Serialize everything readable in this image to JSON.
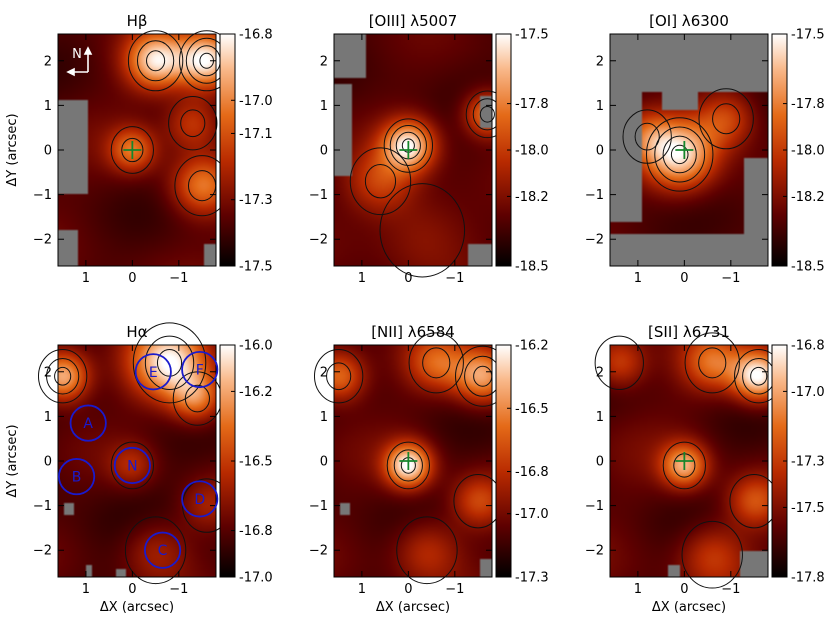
{
  "chart_data": [
    {
      "type": "heatmap",
      "title": "Hβ",
      "xlabel": "",
      "ylabel": "ΔY (arcsec)",
      "xlim": [
        1.6,
        -1.8
      ],
      "ylim": [
        -2.6,
        2.6
      ],
      "xticks": [
        1,
        0,
        -1
      ],
      "yticks": [
        -2,
        -1,
        0,
        1,
        2
      ],
      "xtick_labels": [
        "1",
        "0",
        "−1"
      ],
      "ytick_labels": [
        "−2",
        "−1",
        "0",
        "1",
        "2"
      ],
      "colorbar": {
        "range": [
          -17.5,
          -16.8
        ],
        "ticks": [
          -16.8,
          -17.0,
          -17.1,
          -17.3,
          -17.5
        ],
        "tick_labels": [
          "-16.8",
          "-17.0",
          "-17.1",
          "-17.3",
          "-17.5"
        ]
      },
      "peaks": [
        {
          "x": 0.0,
          "y": 0.0,
          "amp": 0.55,
          "s": 0.35
        },
        {
          "x": -0.5,
          "y": 2.0,
          "amp": 0.85,
          "s": 0.45
        },
        {
          "x": -1.6,
          "y": 2.0,
          "amp": 0.95,
          "s": 0.45
        },
        {
          "x": -1.5,
          "y": -0.8,
          "amp": 0.55,
          "s": 0.45
        },
        {
          "x": -1.3,
          "y": 0.6,
          "amp": 0.4,
          "s": 0.4
        }
      ],
      "base": 0.45,
      "masked": [
        {
          "x0": 1.6,
          "x1": 0.95,
          "y0": -1.0,
          "y1": 1.1
        },
        {
          "x0": 1.6,
          "x1": 1.15,
          "y0": -2.6,
          "y1": -1.8
        },
        {
          "x0": -1.55,
          "x1": -1.8,
          "y0": -2.6,
          "y1": -2.1
        }
      ],
      "marker": {
        "x": 0,
        "y": 0
      },
      "compass": {
        "north": "N"
      },
      "circles": []
    },
    {
      "type": "heatmap",
      "title": "[OIII] λ5007",
      "xlabel": "",
      "ylabel": "",
      "xlim": [
        1.6,
        -1.8
      ],
      "ylim": [
        -2.6,
        2.6
      ],
      "xticks": [
        1,
        0,
        -1
      ],
      "yticks": [
        -2,
        -1,
        0,
        1,
        2
      ],
      "xtick_labels": [
        "1",
        "0",
        "−1"
      ],
      "ytick_labels": [
        "−2",
        "−1",
        "0",
        "1",
        "2"
      ],
      "colorbar": {
        "range": [
          -18.5,
          -17.5
        ],
        "ticks": [
          -17.5,
          -17.8,
          -18.0,
          -18.2,
          -18.5
        ],
        "tick_labels": [
          "-17.5",
          "-17.8",
          "-18.0",
          "-18.2",
          "-18.5"
        ]
      },
      "peaks": [
        {
          "x": 0.0,
          "y": 0.1,
          "amp": 1.05,
          "s": 0.4
        },
        {
          "x": 0.6,
          "y": -0.7,
          "amp": 0.45,
          "s": 0.5
        },
        {
          "x": -1.7,
          "y": 0.8,
          "amp": 0.75,
          "s": 0.35
        },
        {
          "x": -0.3,
          "y": -1.8,
          "amp": 0.25,
          "s": 0.7
        }
      ],
      "base": 0.28,
      "masked": [
        {
          "x0": 1.6,
          "x1": 0.9,
          "y0": 1.6,
          "y1": 2.6
        },
        {
          "x0": 1.6,
          "x1": 1.2,
          "y0": -0.6,
          "y1": 1.5
        },
        {
          "x0": -1.55,
          "x1": -1.8,
          "y0": 0.5,
          "y1": 1.2
        },
        {
          "x0": -1.3,
          "x1": -1.8,
          "y0": -2.6,
          "y1": -2.1
        }
      ],
      "marker": {
        "x": 0,
        "y": 0
      },
      "compass": null,
      "circles": []
    },
    {
      "type": "heatmap",
      "title": "[OI] λ6300",
      "xlabel": "",
      "ylabel": "",
      "xlim": [
        1.6,
        -1.8
      ],
      "ylim": [
        -2.6,
        2.6
      ],
      "xticks": [
        1,
        0,
        -1
      ],
      "yticks": [
        -2,
        -1,
        0,
        1,
        2
      ],
      "xtick_labels": [
        "1",
        "0",
        "−1"
      ],
      "ytick_labels": [
        "−2",
        "−1",
        "0",
        "1",
        "2"
      ],
      "colorbar": {
        "range": [
          -18.5,
          -17.5
        ],
        "ticks": [
          -17.5,
          -17.8,
          -18.0,
          -18.2,
          -18.5
        ],
        "tick_labels": [
          "-17.5",
          "-17.8",
          "-18.0",
          "-18.2",
          "-18.5"
        ]
      },
      "peaks": [
        {
          "x": 0.1,
          "y": -0.1,
          "amp": 1.1,
          "s": 0.55
        },
        {
          "x": -0.9,
          "y": 0.7,
          "amp": 0.55,
          "s": 0.45
        },
        {
          "x": 0.8,
          "y": 0.3,
          "amp": 0.4,
          "s": 0.4
        }
      ],
      "base": 0.38,
      "masked": [
        {
          "x0": 1.6,
          "x1": -1.8,
          "y0": 1.3,
          "y1": 2.6
        },
        {
          "x0": 1.6,
          "x1": 0.9,
          "y0": -1.6,
          "y1": 1.3
        },
        {
          "x0": 1.6,
          "x1": -1.8,
          "y0": -2.6,
          "y1": -1.9
        },
        {
          "x0": -1.3,
          "x1": -1.8,
          "y0": -1.9,
          "y1": -0.2
        },
        {
          "x0": 0.5,
          "x1": -0.3,
          "y0": 0.9,
          "y1": 1.3
        }
      ],
      "marker": {
        "x": 0,
        "y": 0
      },
      "compass": null,
      "circles": []
    },
    {
      "type": "heatmap",
      "title": "Hα",
      "xlabel": "ΔX (arcsec)",
      "ylabel": "ΔY (arcsec)",
      "xlim": [
        1.6,
        -1.8
      ],
      "ylim": [
        -2.6,
        2.6
      ],
      "xticks": [
        1,
        0,
        -1
      ],
      "yticks": [
        -2,
        -1,
        0,
        1,
        2
      ],
      "xtick_labels": [
        "1",
        "0",
        "−1"
      ],
      "ytick_labels": [
        "−2",
        "−1",
        "0",
        "1",
        "2"
      ],
      "colorbar": {
        "range": [
          -17.0,
          -16.0
        ],
        "ticks": [
          -16.0,
          -16.2,
          -16.5,
          -16.8,
          -17.0
        ],
        "tick_labels": [
          "-16.0",
          "-16.2",
          "-16.5",
          "-16.8",
          "-17.0"
        ]
      },
      "peaks": [
        {
          "x": 1.5,
          "y": 1.9,
          "amp": 0.75,
          "s": 0.4
        },
        {
          "x": -0.8,
          "y": 2.2,
          "amp": 0.8,
          "s": 0.6
        },
        {
          "x": -1.4,
          "y": 1.4,
          "amp": 0.5,
          "s": 0.4
        },
        {
          "x": 0.0,
          "y": -0.1,
          "amp": 0.25,
          "s": 0.35
        },
        {
          "x": -0.5,
          "y": -2.0,
          "amp": 0.25,
          "s": 0.5
        },
        {
          "x": -1.6,
          "y": -1.0,
          "amp": 0.2,
          "s": 0.4
        }
      ],
      "base": 0.4,
      "masked": [
        {
          "x0": 1.45,
          "x1": 1.25,
          "y0": -1.2,
          "y1": -0.95
        },
        {
          "x0": 1.0,
          "x1": 0.85,
          "y0": -2.6,
          "y1": -2.35
        },
        {
          "x0": 0.35,
          "x1": 0.15,
          "y0": -2.6,
          "y1": -2.4
        }
      ],
      "marker": null,
      "compass": null,
      "circles": [
        {
          "label": "A",
          "x": 0.95,
          "y": 0.85,
          "r": 0.38
        },
        {
          "label": "B",
          "x": 1.2,
          "y": -0.35,
          "r": 0.38
        },
        {
          "label": "N",
          "x": 0.0,
          "y": -0.1,
          "r": 0.38
        },
        {
          "label": "E",
          "x": -0.45,
          "y": 2.0,
          "r": 0.38
        },
        {
          "label": "F",
          "x": -1.45,
          "y": 2.05,
          "r": 0.38
        },
        {
          "label": "D",
          "x": -1.45,
          "y": -0.85,
          "r": 0.38
        },
        {
          "label": "C",
          "x": -0.65,
          "y": -2.0,
          "r": 0.38
        }
      ]
    },
    {
      "type": "heatmap",
      "title": "[NII] λ6584",
      "xlabel": "ΔX (arcsec)",
      "ylabel": "",
      "xlim": [
        1.6,
        -1.8
      ],
      "ylim": [
        -2.6,
        2.6
      ],
      "xticks": [
        1,
        0,
        -1
      ],
      "yticks": [
        -2,
        -1,
        0,
        1,
        2
      ],
      "xtick_labels": [
        "1",
        "0",
        "−1"
      ],
      "ytick_labels": [
        "−2",
        "−1",
        "0",
        "1",
        "2"
      ],
      "colorbar": {
        "range": [
          -17.3,
          -16.2
        ],
        "ticks": [
          -16.2,
          -16.5,
          -16.8,
          -17.0,
          -17.3
        ],
        "tick_labels": [
          "-16.2",
          "-16.5",
          "-16.8",
          "-17.0",
          "-17.3"
        ]
      },
      "peaks": [
        {
          "x": 0.0,
          "y": -0.1,
          "amp": 0.85,
          "s": 0.35
        },
        {
          "x": 1.5,
          "y": 1.9,
          "amp": 0.55,
          "s": 0.4
        },
        {
          "x": -1.6,
          "y": 1.9,
          "amp": 0.65,
          "s": 0.45
        },
        {
          "x": -0.6,
          "y": 2.2,
          "amp": 0.4,
          "s": 0.45
        },
        {
          "x": -1.5,
          "y": -0.9,
          "amp": 0.35,
          "s": 0.4
        },
        {
          "x": -0.4,
          "y": -2.0,
          "amp": 0.3,
          "s": 0.5
        }
      ],
      "base": 0.42,
      "masked": [
        {
          "x0": 1.45,
          "x1": 1.25,
          "y0": -1.2,
          "y1": -0.95
        },
        {
          "x0": -1.55,
          "x1": -1.8,
          "y0": -2.6,
          "y1": -2.2
        }
      ],
      "marker": {
        "x": 0,
        "y": 0
      },
      "compass": null,
      "circles": []
    },
    {
      "type": "heatmap",
      "title": "[SII] λ6731",
      "xlabel": "ΔX (arcsec)",
      "ylabel": "",
      "xlim": [
        1.6,
        -1.8
      ],
      "ylim": [
        -2.6,
        2.6
      ],
      "xticks": [
        1,
        0,
        -1
      ],
      "yticks": [
        -2,
        -1,
        0,
        1,
        2
      ],
      "xtick_labels": [
        "1",
        "0",
        "−1"
      ],
      "ytick_labels": [
        "−2",
        "−1",
        "0",
        "1",
        "2"
      ],
      "colorbar": {
        "range": [
          -17.8,
          -16.8
        ],
        "ticks": [
          -16.8,
          -17.0,
          -17.3,
          -17.5,
          -17.8
        ],
        "tick_labels": [
          "-16.8",
          "-17.0",
          "-17.3",
          "-17.5",
          "-17.8"
        ]
      },
      "peaks": [
        {
          "x": 0.0,
          "y": -0.1,
          "amp": 0.6,
          "s": 0.35
        },
        {
          "x": -1.6,
          "y": 1.9,
          "amp": 0.8,
          "s": 0.4
        },
        {
          "x": -0.6,
          "y": 2.2,
          "amp": 0.4,
          "s": 0.45
        },
        {
          "x": 1.4,
          "y": 2.2,
          "amp": 0.35,
          "s": 0.4
        },
        {
          "x": -1.5,
          "y": -0.9,
          "amp": 0.35,
          "s": 0.4
        },
        {
          "x": -0.6,
          "y": -2.1,
          "amp": 0.3,
          "s": 0.5
        }
      ],
      "base": 0.42,
      "masked": [
        {
          "x0": -1.2,
          "x1": -1.8,
          "y0": -2.6,
          "y1": -2.0
        },
        {
          "x0": 0.35,
          "x1": 0.1,
          "y0": -2.6,
          "y1": -2.35
        }
      ],
      "marker": {
        "x": 0,
        "y": 0
      },
      "compass": null,
      "circles": []
    }
  ],
  "colors": {
    "mask": "#777777",
    "contour": "#111111",
    "marker": "#16862b",
    "circle": "#1a1acd",
    "compass": "#ffffff"
  }
}
